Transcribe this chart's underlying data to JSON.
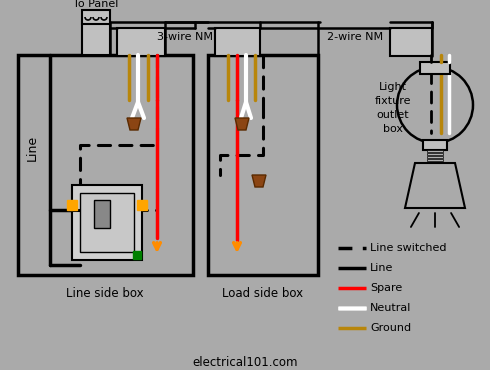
{
  "bg_color": "#aaaaaa",
  "watermark": "electrical101.com",
  "panel_label": "To Panel",
  "wire_3nm_label": "3-wire NM",
  "wire_2nm_label": "2-wire NM",
  "line_label": "Line",
  "line_side_label": "Line side box",
  "load_side_label": "Load side box",
  "fixture_label": "Light\nfixture\noutlet\nbox",
  "legend": [
    {
      "label": "Line switched",
      "color": "#000000",
      "dashed": true
    },
    {
      "label": "Line",
      "color": "#000000",
      "dashed": false
    },
    {
      "label": "Spare",
      "color": "#ff0000",
      "dashed": false
    },
    {
      "label": "Neutral",
      "color": "#ffffff",
      "dashed": false
    },
    {
      "label": "Ground",
      "color": "#b8860b",
      "dashed": false
    }
  ],
  "gold": "#b8860b",
  "white": "#ffffff",
  "red": "#ff0000",
  "black": "#000000",
  "brown": "#8B4513",
  "orange_arrow": "#ff8c00",
  "box_gray": "#c0c0c0",
  "switch_gray": "#d0d0d0",
  "toggle_gray": "#888888",
  "green": "#008000"
}
